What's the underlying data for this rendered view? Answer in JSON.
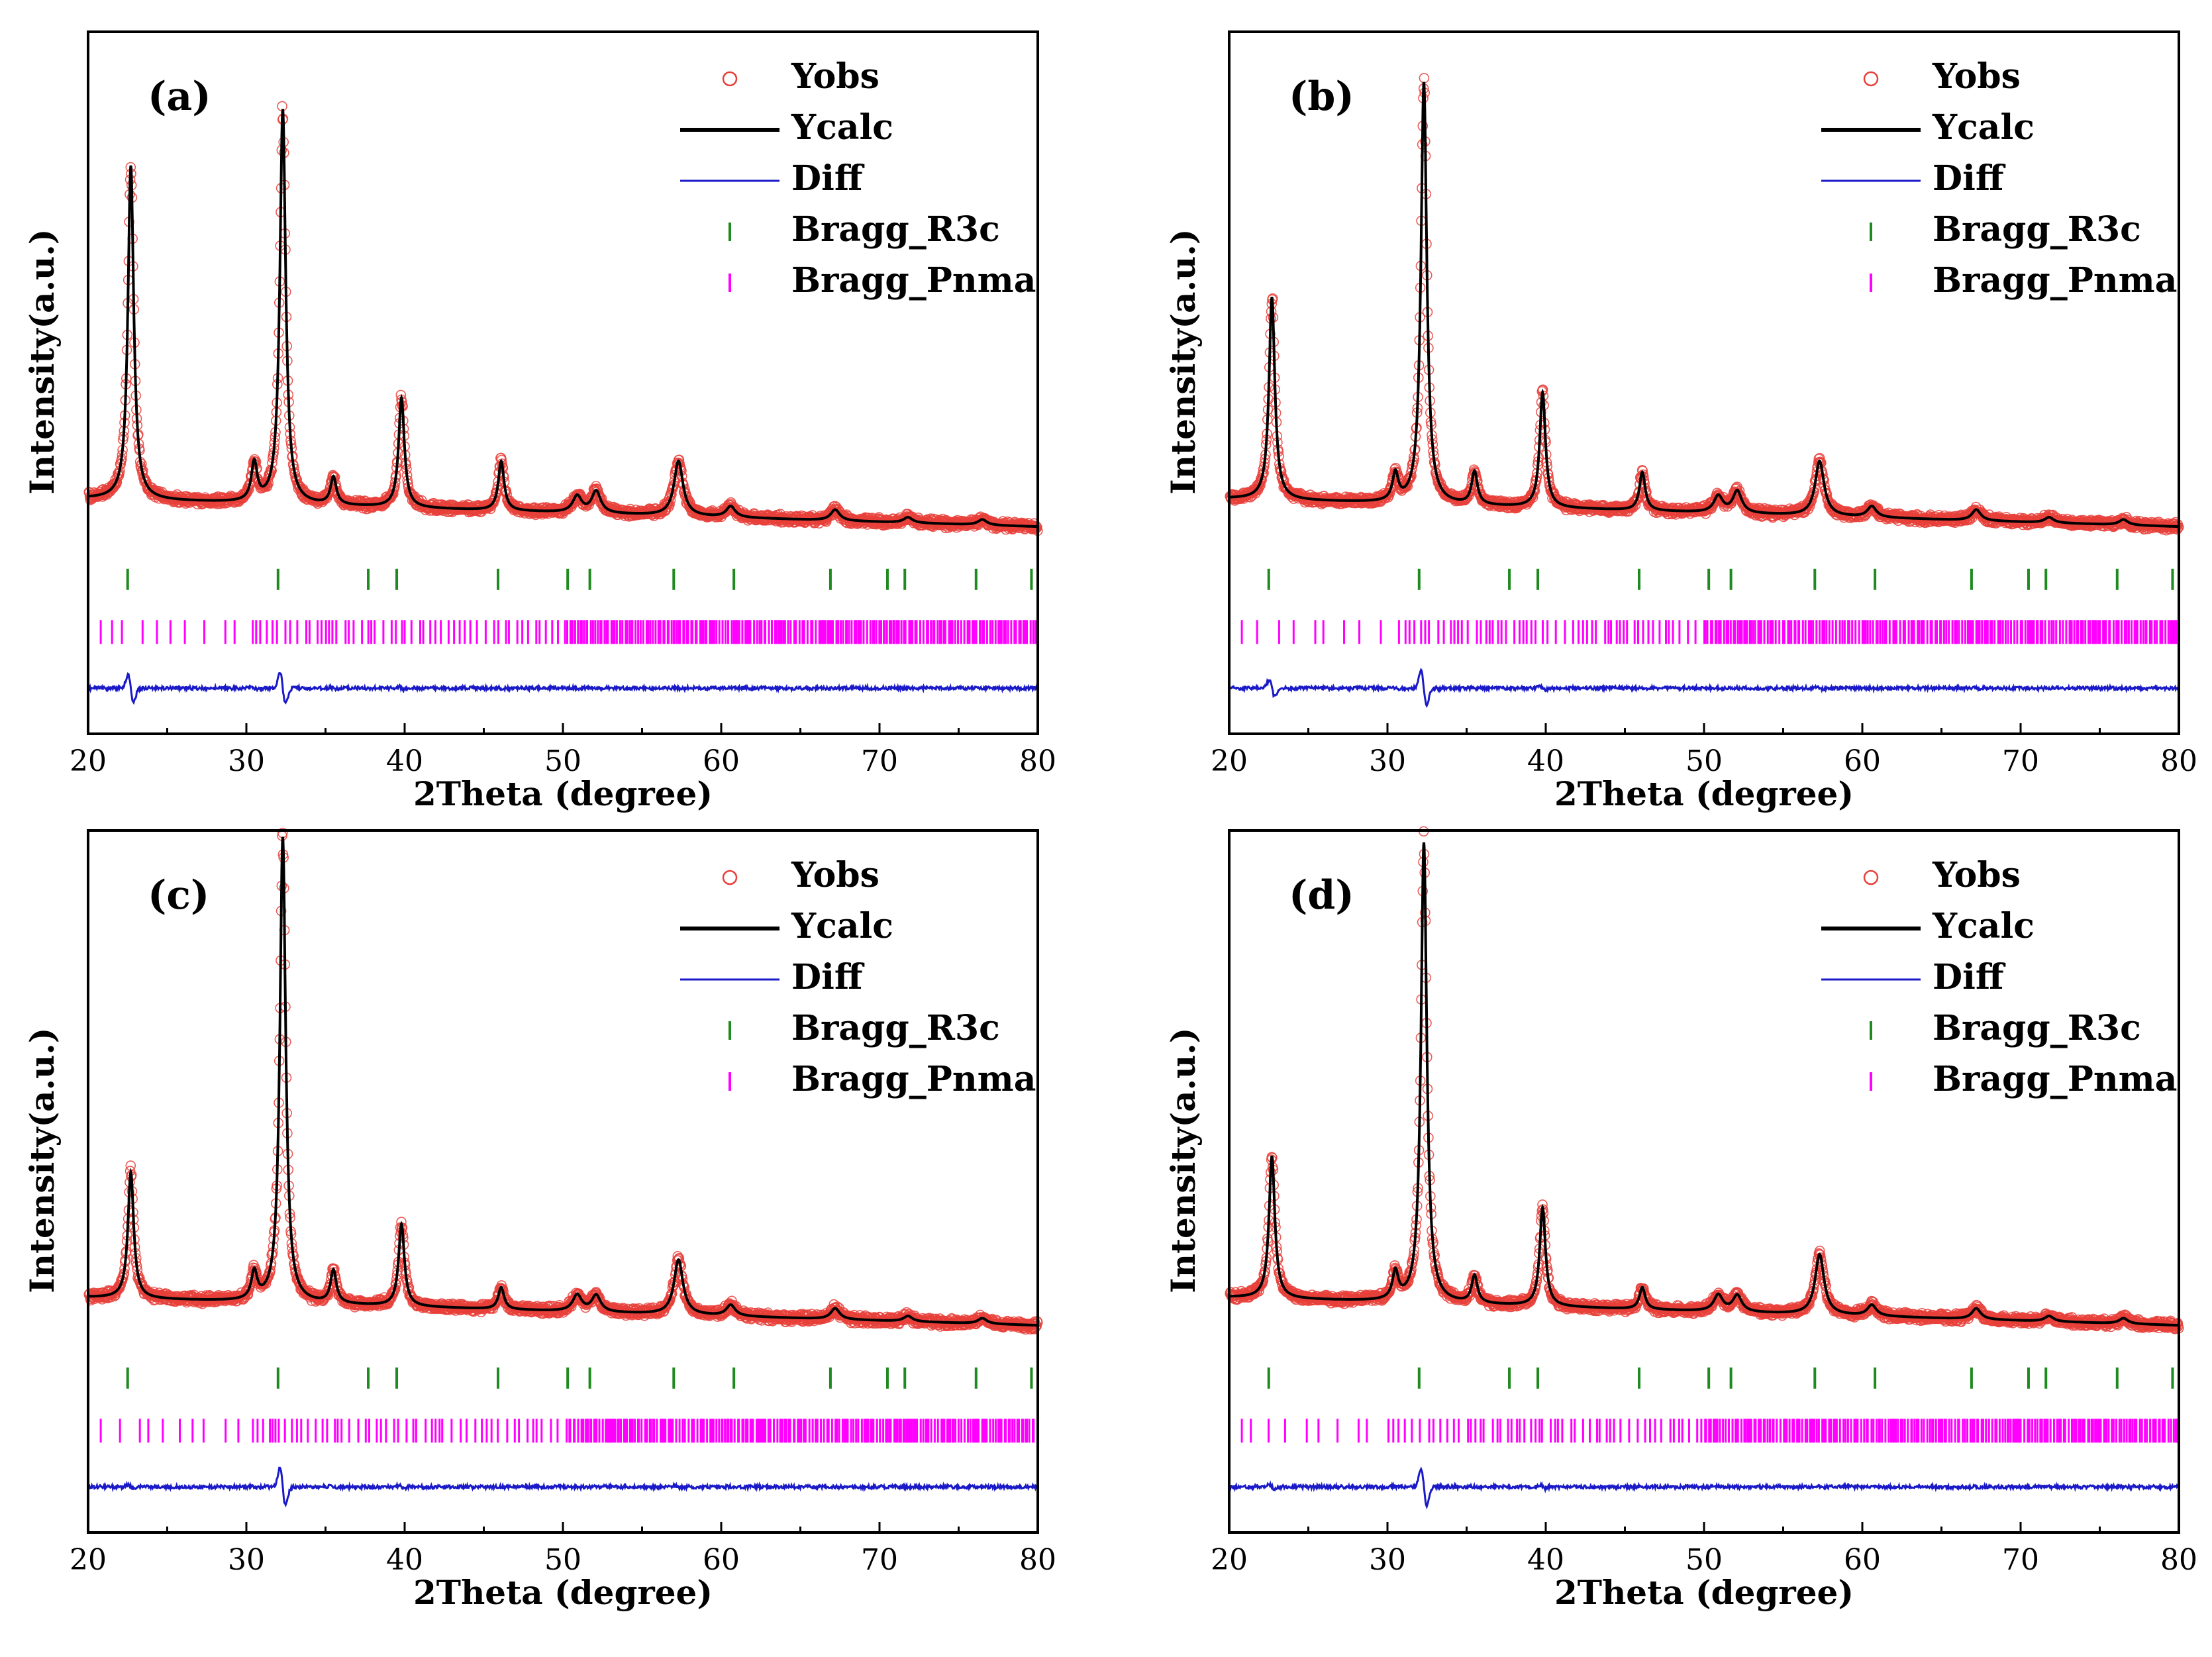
{
  "colors": {
    "obs": "#e8403a",
    "calc": "#000000",
    "diff": "#1a1ac8",
    "bragg_r3c": "#1f8a1f",
    "bragg_pnma": "#ff00ff",
    "axis": "#000000"
  },
  "chart_data": [
    {
      "type": "line",
      "panel": "(a)",
      "xlabel": "2Theta (degree)",
      "ylabel": "Intensity(a.u.)",
      "xlim": [
        20,
        80
      ],
      "xticks": [
        "20",
        "30",
        "40",
        "50",
        "60",
        "70",
        "80"
      ],
      "ylim": [
        0,
        1
      ],
      "legend": [
        "Yobs",
        "Ycalc",
        "Diff",
        "Bragg_R3c",
        "Bragg_Pnma"
      ],
      "legend_position": "top-right",
      "peaks": [
        {
          "x": 22.7,
          "height": 0.61
        },
        {
          "x": 30.5,
          "height": 0.07
        },
        {
          "x": 32.3,
          "height": 0.72
        },
        {
          "x": 35.5,
          "height": 0.05
        },
        {
          "x": 39.8,
          "height": 0.2
        },
        {
          "x": 46.1,
          "height": 0.09
        },
        {
          "x": 50.9,
          "height": 0.03
        },
        {
          "x": 52.1,
          "height": 0.04
        },
        {
          "x": 57.3,
          "height": 0.1
        },
        {
          "x": 60.6,
          "height": 0.02
        },
        {
          "x": 67.2,
          "height": 0.02
        },
        {
          "x": 71.8,
          "height": 0.01
        },
        {
          "x": 76.5,
          "height": 0.01
        }
      ],
      "bragg_r3c": [
        22.5,
        32.0,
        37.7,
        39.5,
        45.9,
        50.3,
        51.7,
        57.0,
        60.8,
        66.9,
        70.5,
        71.6,
        76.1,
        79.6
      ]
    },
    {
      "type": "line",
      "panel": "(b)",
      "xlabel": "2Theta (degree)",
      "ylabel": "Intensity(a.u.)",
      "xlim": [
        20,
        80
      ],
      "xticks": [
        "20",
        "30",
        "40",
        "50",
        "60",
        "70",
        "80"
      ],
      "ylim": [
        0,
        1
      ],
      "legend": [
        "Yobs",
        "Ycalc",
        "Diff",
        "Bragg_R3c",
        "Bragg_Pnma"
      ],
      "legend_position": "top-right",
      "peaks": [
        {
          "x": 22.7,
          "height": 0.37
        },
        {
          "x": 30.5,
          "height": 0.05
        },
        {
          "x": 32.3,
          "height": 0.77
        },
        {
          "x": 35.5,
          "height": 0.06
        },
        {
          "x": 39.8,
          "height": 0.21
        },
        {
          "x": 46.1,
          "height": 0.07
        },
        {
          "x": 50.9,
          "height": 0.03
        },
        {
          "x": 52.1,
          "height": 0.04
        },
        {
          "x": 57.3,
          "height": 0.1
        },
        {
          "x": 60.6,
          "height": 0.02
        },
        {
          "x": 67.2,
          "height": 0.02
        },
        {
          "x": 71.8,
          "height": 0.01
        },
        {
          "x": 76.5,
          "height": 0.01
        }
      ],
      "bragg_r3c": [
        22.5,
        32.0,
        37.7,
        39.5,
        45.9,
        50.3,
        51.7,
        57.0,
        60.8,
        66.9,
        70.5,
        71.6,
        76.1,
        79.6
      ]
    },
    {
      "type": "line",
      "panel": "(c)",
      "xlabel": "2Theta (degree)",
      "ylabel": "Intensity(a.u.)",
      "xlim": [
        20,
        80
      ],
      "xticks": [
        "20",
        "30",
        "40",
        "50",
        "60",
        "70",
        "80"
      ],
      "ylim": [
        0,
        1
      ],
      "legend": [
        "Yobs",
        "Ycalc",
        "Diff",
        "Bragg_R3c",
        "Bragg_Pnma"
      ],
      "legend_position": "top-right",
      "peaks": [
        {
          "x": 22.7,
          "height": 0.23
        },
        {
          "x": 30.5,
          "height": 0.05
        },
        {
          "x": 32.3,
          "height": 0.85
        },
        {
          "x": 35.5,
          "height": 0.06
        },
        {
          "x": 39.8,
          "height": 0.15
        },
        {
          "x": 46.1,
          "height": 0.04
        },
        {
          "x": 50.9,
          "height": 0.03
        },
        {
          "x": 52.1,
          "height": 0.03
        },
        {
          "x": 57.3,
          "height": 0.1
        },
        {
          "x": 60.6,
          "height": 0.02
        },
        {
          "x": 67.2,
          "height": 0.02
        },
        {
          "x": 71.8,
          "height": 0.01
        },
        {
          "x": 76.5,
          "height": 0.01
        }
      ],
      "bragg_r3c": [
        22.5,
        32.0,
        37.7,
        39.5,
        45.9,
        50.3,
        51.7,
        57.0,
        60.8,
        66.9,
        70.5,
        71.6,
        76.1,
        79.6
      ]
    },
    {
      "type": "line",
      "panel": "(d)",
      "xlabel": "2Theta (degree)",
      "ylabel": "Intensity(a.u.)",
      "xlim": [
        20,
        80
      ],
      "xticks": [
        "20",
        "30",
        "40",
        "50",
        "60",
        "70",
        "80"
      ],
      "ylim": [
        0,
        1
      ],
      "legend": [
        "Yobs",
        "Ycalc",
        "Diff",
        "Bragg_R3c",
        "Bragg_Pnma"
      ],
      "legend_position": "top-right",
      "peaks": [
        {
          "x": 22.7,
          "height": 0.26
        },
        {
          "x": 30.5,
          "height": 0.05
        },
        {
          "x": 32.3,
          "height": 0.84
        },
        {
          "x": 35.5,
          "height": 0.05
        },
        {
          "x": 39.8,
          "height": 0.18
        },
        {
          "x": 46.1,
          "height": 0.04
        },
        {
          "x": 50.9,
          "height": 0.03
        },
        {
          "x": 52.1,
          "height": 0.03
        },
        {
          "x": 57.3,
          "height": 0.11
        },
        {
          "x": 60.6,
          "height": 0.02
        },
        {
          "x": 67.2,
          "height": 0.02
        },
        {
          "x": 71.8,
          "height": 0.01
        },
        {
          "x": 76.5,
          "height": 0.01
        }
      ],
      "bragg_r3c": [
        22.5,
        32.0,
        37.7,
        39.5,
        45.9,
        50.3,
        51.7,
        57.0,
        60.8,
        66.9,
        70.5,
        71.6,
        76.1,
        79.6
      ]
    }
  ]
}
